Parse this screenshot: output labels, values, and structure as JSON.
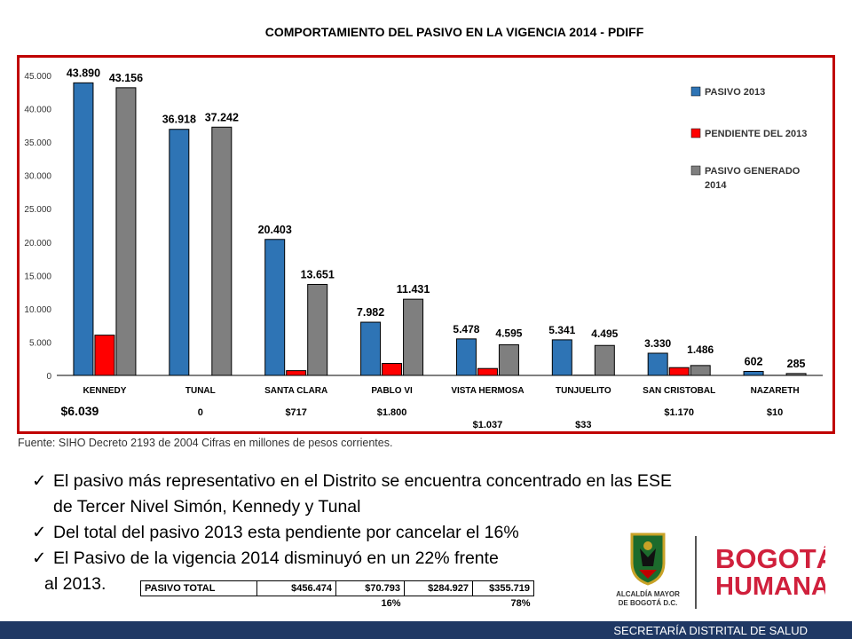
{
  "title": "COMPORTAMIENTO DEL PASIVO EN LA VIGENCIA 2014 - PDIFF",
  "chart_data": {
    "type": "bar",
    "categories": [
      "KENNEDY",
      "TUNAL",
      "SANTA CLARA",
      "PABLO VI",
      "VISTA HERMOSA",
      "TUNJUELITO",
      "SAN CRISTOBAL",
      "NAZARETH"
    ],
    "series": [
      {
        "name": "PASIVO 2013",
        "color": "#2e74b5",
        "values": [
          43890,
          36918,
          20403,
          7982,
          5478,
          5341,
          3330,
          602
        ],
        "labels": [
          "43.890",
          "36.918",
          "20.403",
          "7.982",
          "5.478",
          "5.341",
          "3.330",
          "602"
        ]
      },
      {
        "name": "PENDIENTE DEL 2013",
        "color": "#ff0000",
        "values": [
          6039,
          0,
          717,
          1800,
          1037,
          33,
          1170,
          10
        ],
        "labels": [
          "$6.039",
          "0",
          "$717",
          "$1.800",
          "$1.037",
          "$33",
          "$1.170",
          "$10"
        ]
      },
      {
        "name": "PASIVO GENERADO 2014",
        "color": "#7f7f7f",
        "values": [
          43156,
          37242,
          13651,
          11431,
          4595,
          4495,
          1486,
          285
        ],
        "labels": [
          "43.156",
          "37.242",
          "13.651",
          "11.431",
          "4.595",
          "4.495",
          "1.486",
          "285"
        ]
      }
    ],
    "yticks": [
      "0",
      "5.000",
      "10.000",
      "15.000",
      "20.000",
      "25.000",
      "30.000",
      "35.000",
      "40.000",
      "45.000"
    ],
    "ylim": [
      0,
      45000
    ],
    "legend_position": "right",
    "grid": false
  },
  "source": "Fuente: SIHO Decreto 2193 de 2004 Cifras en millones de pesos corrientes.",
  "bullets": {
    "b1_line1": "El pasivo más representativo en el Distrito se encuentra concentrado en las ESE",
    "b1_line2": "de Tercer Nivel Simón, Kennedy y Tunal",
    "b2": "Del total del pasivo 2013 esta pendiente por cancelar el 16%",
    "b3_line1": "El Pasivo de la vigencia 2014 disminuyó en un 22% frente",
    "b3_line2": "al 2013."
  },
  "summary": {
    "label": "PASIVO TOTAL",
    "v1": "$456.474",
    "v2": "$70.793",
    "v3": "$284.927",
    "v4": "$355.719",
    "p1": "16%",
    "p2": "78%"
  },
  "logos": {
    "alcaldia_line1": "ALCALDÍA MAYOR",
    "alcaldia_line2": "DE BOGOTÁ D.C.",
    "bogota": "BOGOTÁ",
    "humana": "HUMANA"
  },
  "footer": "SECRETARÍA DISTRITAL DE SALUD"
}
